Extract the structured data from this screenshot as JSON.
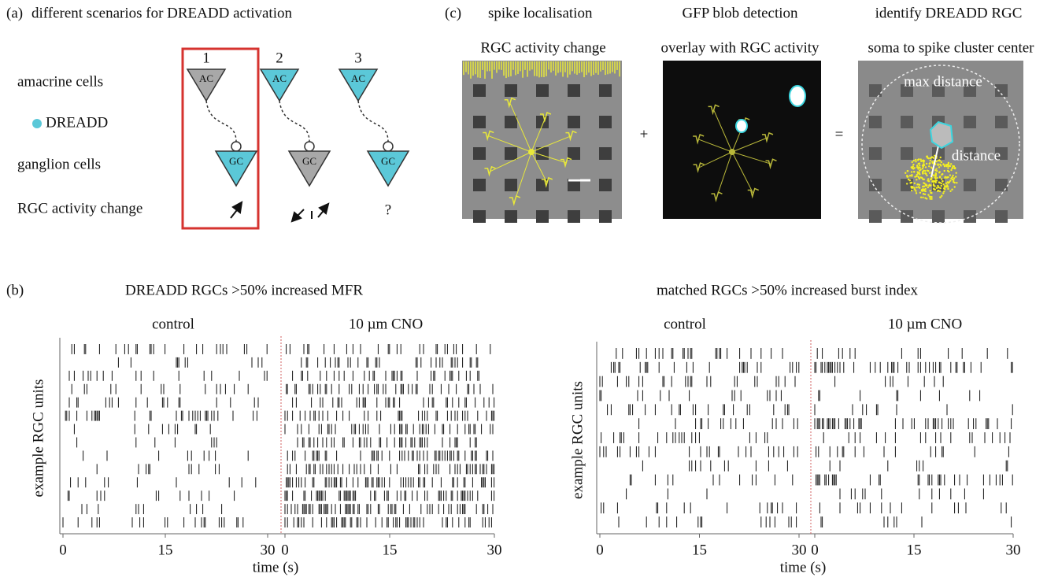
{
  "panel_a": {
    "label": "(a)",
    "title": "different scenarios for DREADD activation",
    "row_labels": [
      "amacrine cells",
      "DREADD",
      "ganglion cells",
      "RGC activity change"
    ],
    "scenarios": [
      {
        "number": "1",
        "ac": "AC",
        "gc": "GC"
      },
      {
        "number": "2",
        "ac": "AC",
        "gc": "GC"
      },
      {
        "number": "3",
        "ac": "AC",
        "gc": "GC",
        "change": "?"
      }
    ]
  },
  "panel_c": {
    "label": "(c)",
    "columns": [
      {
        "title": "spike localisation",
        "subtitle": "RGC activity change"
      },
      {
        "title": "GFP blob detection",
        "subtitle": "overlay with RGC activity"
      },
      {
        "title": "identify DREADD RGC",
        "subtitle": "soma to spike cluster center",
        "annotations": [
          "max distance",
          "distance"
        ]
      }
    ],
    "operators": [
      "+",
      "="
    ]
  },
  "panel_b": {
    "label": "(b)",
    "rasters": [
      {
        "title": "DREADD RGCs >50% increased MFR",
        "ylabel": "example RGC units",
        "xlabel": "time (s)",
        "segments": [
          {
            "condition": "control",
            "xticks": [
              0,
              15,
              30
            ]
          },
          {
            "condition": "10 µm CNO",
            "xticks": [
              0,
              15,
              30
            ]
          }
        ]
      },
      {
        "title": "matched RGCs >50% increased burst index",
        "ylabel": "example RGC units",
        "xlabel": "time (s)",
        "segments": [
          {
            "condition": "control",
            "xticks": [
              0,
              15,
              30
            ]
          },
          {
            "condition": "10 µm CNO",
            "xticks": [
              0,
              15,
              30
            ]
          }
        ]
      }
    ]
  }
}
